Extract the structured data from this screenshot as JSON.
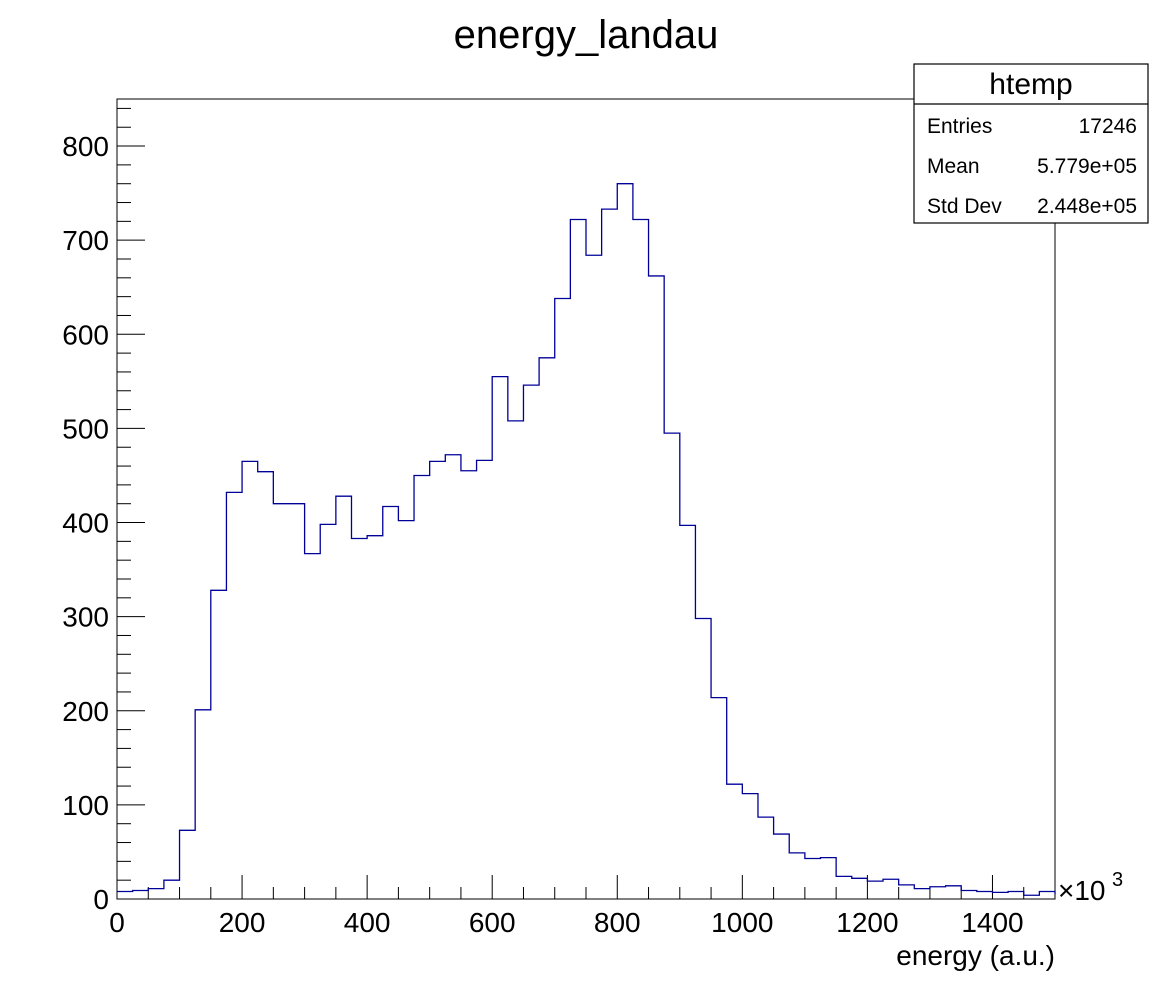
{
  "chart_data": {
    "type": "bar",
    "title": "energy_landau",
    "xlabel": "energy (a.u.)",
    "ylabel": "",
    "x_multiplier": "×10",
    "x_multiplier_exp": "3",
    "xlim": [
      0,
      1500
    ],
    "ylim": [
      0,
      850
    ],
    "bin_width": 25,
    "x_ticks": [
      "0",
      "200",
      "400",
      "600",
      "800",
      "1000",
      "1200",
      "1400"
    ],
    "y_ticks": [
      "0",
      "100",
      "200",
      "300",
      "400",
      "500",
      "600",
      "700",
      "800"
    ],
    "series": [
      {
        "line_color": "#000099",
        "bin_edges_start": 0,
        "values": [
          8,
          9,
          11,
          20,
          73,
          201,
          328,
          432,
          465,
          454,
          420,
          420,
          367,
          398,
          428,
          383,
          386,
          417,
          402,
          450,
          465,
          472,
          455,
          466,
          555,
          508,
          546,
          575,
          638,
          722,
          684,
          733,
          760,
          722,
          662,
          495,
          397,
          298,
          214,
          122,
          112,
          87,
          69,
          49,
          43,
          44,
          24,
          22,
          19,
          21,
          15,
          11,
          13,
          14,
          9,
          8,
          7,
          8,
          4,
          8,
          5
        ]
      }
    ],
    "stats_box": {
      "title": "htemp",
      "rows": [
        {
          "label": "Entries",
          "value": "17246"
        },
        {
          "label": "Mean",
          "value": "5.779e+05"
        },
        {
          "label": "Std Dev",
          "value": "2.448e+05"
        }
      ]
    }
  }
}
